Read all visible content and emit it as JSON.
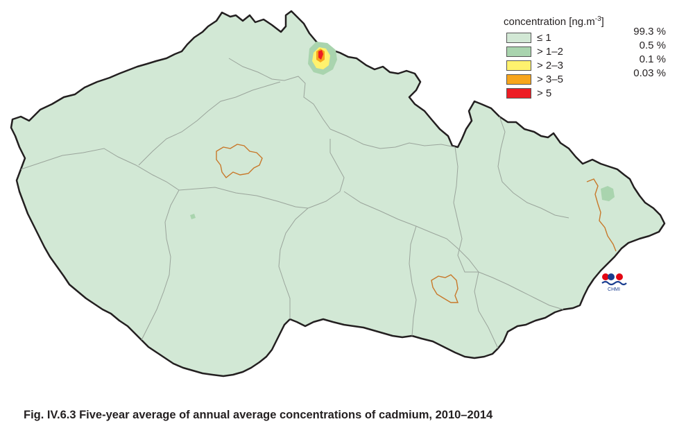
{
  "legend": {
    "title_main": "concentration [ng.m",
    "title_exp": "-3",
    "title_close": "]",
    "classes": [
      {
        "label": "≤ 1",
        "share": "99.3 %",
        "color": "#d2e8d5"
      },
      {
        "label": "> 1–2",
        "share": "0.5 %",
        "color": "#a9d4ae"
      },
      {
        "label": "> 2–3",
        "share": "0.1 %",
        "color": "#fff26e"
      },
      {
        "label": "> 3–5",
        "share": "0.03 %",
        "color": "#f7a51c"
      },
      {
        "label": "> 5",
        "share": "",
        "color": "#ed1c24"
      }
    ]
  },
  "map": {
    "country_fill": "#d2e8d5",
    "border_color": "#231f20",
    "region_line_color": "#9aa49b",
    "city_outline_color": "#c8782a"
  },
  "logo": {
    "text": "CHMI",
    "red": "#e30613",
    "blue": "#1a3d8f"
  },
  "caption": "Fig. IV.6.3  Five-year average of annual average concentrations of cadmium, 2010–2014"
}
